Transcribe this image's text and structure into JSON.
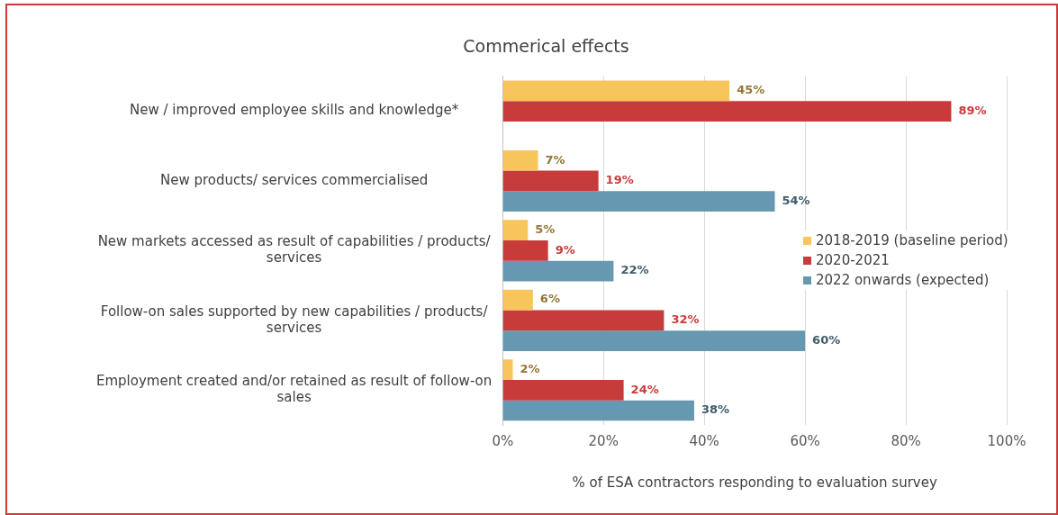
{
  "chart_data": {
    "type": "bar",
    "orientation": "horizontal",
    "title": "Commerical effects",
    "xlabel": "% of ESA contractors responding to evaluation survey",
    "categories": [
      "New / improved employee skills and knowledge*",
      "New products/ services commercialised",
      "New markets accessed as result of capabilities / products/ services",
      "Follow-on sales supported by new capabilities / products/ services",
      "Employment created and/or retained as result of follow-on sales"
    ],
    "series": [
      {
        "name": "2018-2019 (baseline period)",
        "color": "#f8c55c",
        "values": [
          45,
          7,
          5,
          6,
          2
        ],
        "value_labels": [
          "45%",
          "7%",
          "5%",
          "6%",
          "2%"
        ]
      },
      {
        "name": "2020-2021",
        "color": "#c83b3b",
        "values": [
          89,
          19,
          9,
          32,
          24
        ],
        "value_labels": [
          "89%",
          "19%",
          "9%",
          "32%",
          "24%"
        ]
      },
      {
        "name": "2022 onwards (expected)",
        "color": "#6699b1",
        "values": [
          null,
          54,
          22,
          60,
          38
        ],
        "value_labels": [
          null,
          "54%",
          "22%",
          "60%",
          "38%"
        ]
      }
    ],
    "xlim": [
      0,
      100
    ],
    "xticks": [
      {
        "value": 0,
        "label": "0%"
      },
      {
        "value": 20,
        "label": "20%"
      },
      {
        "value": 40,
        "label": "40%"
      },
      {
        "value": 60,
        "label": "60%"
      },
      {
        "value": 80,
        "label": "80%"
      },
      {
        "value": 100,
        "label": "100%"
      }
    ],
    "grid": "x",
    "legend": "right"
  }
}
